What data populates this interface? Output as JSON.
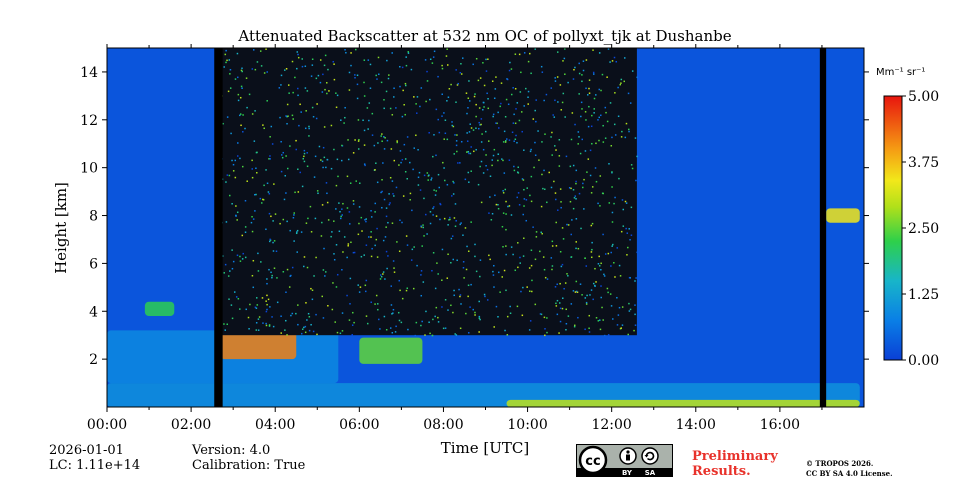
{
  "chart_data": {
    "type": "heatmap",
    "title": "Attenuated Backscatter at 532 nm OC of pollyxt_tjk at Dushanbe",
    "xlabel": "Time [UTC]",
    "ylabel": "Height [km]",
    "xlim_hours": [
      0,
      18
    ],
    "ylim_km": [
      0,
      15
    ],
    "x_ticks": [
      {
        "value": 0,
        "label": "00:00"
      },
      {
        "value": 2,
        "label": "02:00"
      },
      {
        "value": 4,
        "label": "04:00"
      },
      {
        "value": 6,
        "label": "06:00"
      },
      {
        "value": 8,
        "label": "08:00"
      },
      {
        "value": 10,
        "label": "10:00"
      },
      {
        "value": 12,
        "label": "12:00"
      },
      {
        "value": 14,
        "label": "14:00"
      },
      {
        "value": 16,
        "label": "16:00"
      }
    ],
    "y_ticks": [
      {
        "value": 2,
        "label": "2"
      },
      {
        "value": 4,
        "label": "4"
      },
      {
        "value": 6,
        "label": "6"
      },
      {
        "value": 8,
        "label": "8"
      },
      {
        "value": 10,
        "label": "10"
      },
      {
        "value": 12,
        "label": "12"
      },
      {
        "value": 14,
        "label": "14"
      }
    ],
    "colorbar": {
      "unit_label": "Mm⁻¹ sr⁻¹",
      "range": [
        0,
        5
      ],
      "ticks": [
        {
          "value": 0,
          "label": "0.00"
        },
        {
          "value": 1.25,
          "label": "1.25"
        },
        {
          "value": 2.5,
          "label": "2.50"
        },
        {
          "value": 3.75,
          "label": "3.75"
        },
        {
          "value": 5,
          "label": "5.00"
        }
      ]
    },
    "features": [
      {
        "name": "boundary-layer-aerosol",
        "t_start": 0.0,
        "t_end": 17.9,
        "h_bottom": 0.0,
        "h_top": 1.0,
        "value": 1.0
      },
      {
        "name": "aerosol-layer",
        "t_start": 0.0,
        "t_end": 5.5,
        "h_bottom": 1.0,
        "h_top": 3.2,
        "value": 0.9
      },
      {
        "name": "dense-aerosol-layer",
        "t_start": 2.7,
        "t_end": 4.5,
        "h_bottom": 2.0,
        "h_top": 3.2,
        "value": 4.2
      },
      {
        "name": "dense-aerosol-layer",
        "t_start": 6.0,
        "t_end": 7.5,
        "h_bottom": 1.8,
        "h_top": 2.9,
        "value": 2.5
      },
      {
        "name": "elevated-layer",
        "t_start": 0.9,
        "t_end": 1.6,
        "h_bottom": 3.8,
        "h_top": 4.4,
        "value": 2.2
      },
      {
        "name": "cirrus-cloud",
        "t_start": 17.1,
        "t_end": 17.9,
        "h_bottom": 7.7,
        "h_top": 8.3,
        "value": 3.4
      },
      {
        "name": "surface-signal",
        "t_start": 9.5,
        "t_end": 17.9,
        "h_bottom": 0.0,
        "h_top": 0.3,
        "value": 3.0
      }
    ],
    "daylight_noise": {
      "t_start": 2.7,
      "t_end": 12.6,
      "h_bottom": 3.0,
      "h_top": 15.0
    },
    "no_data_periods": [
      {
        "t_start": 2.55,
        "t_end": 2.75
      },
      {
        "t_start": 16.95,
        "t_end": 17.1
      }
    ]
  },
  "info": {
    "date": "2026-01-01",
    "lidar_constant": "LC: 1.11e+14",
    "version": "Version: 4.0",
    "calibration": "Calibration: True"
  },
  "license": {
    "badge_text": "BY SA",
    "badge_by": "BY",
    "badge_sa": "SA",
    "preliminary_line1": "Preliminary",
    "preliminary_line2": "Results.",
    "copyright_line1": "© TROPOS 2026.",
    "copyright_line2": "CC BY SA 4.0 License.",
    "colors": {
      "preliminary": "#e8322b",
      "badge_bg": "#aab2ab"
    }
  }
}
